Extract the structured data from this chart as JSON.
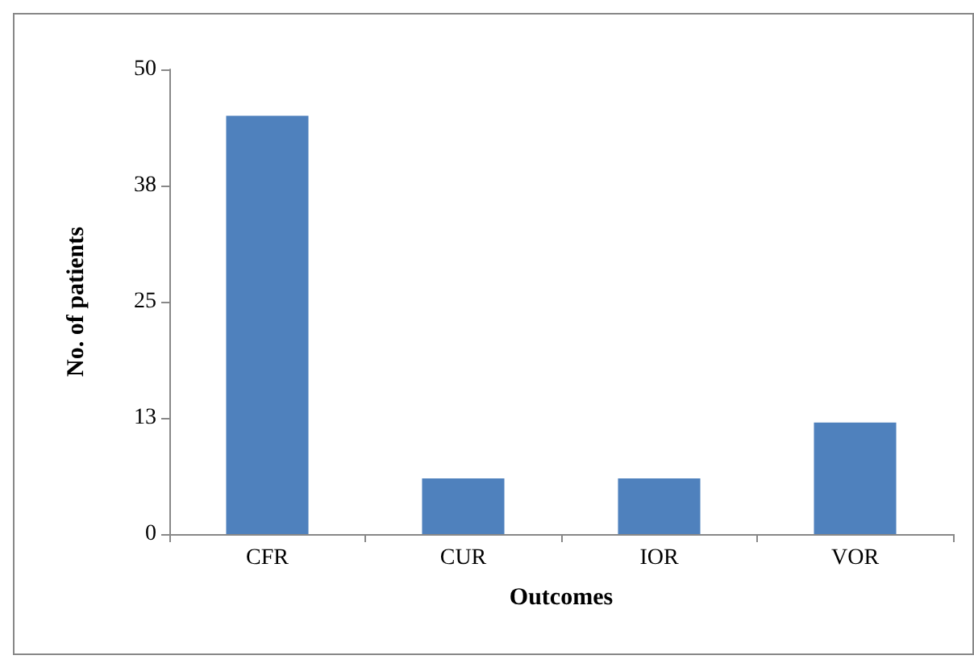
{
  "chart_data": {
    "type": "bar",
    "xlabel": "Outcomes",
    "ylabel": "No. of patients",
    "categories": [
      "CFR",
      "CUR",
      "IOR",
      "VOR"
    ],
    "values": [
      45,
      6,
      6,
      12
    ],
    "color": "#4f81bd",
    "ylim": [
      0,
      50
    ],
    "yticks": [
      0,
      {
        "value": 12.5,
        "label": "13"
      },
      25,
      {
        "value": 37.5,
        "label": "38"
      },
      50
    ],
    "grid": false
  }
}
